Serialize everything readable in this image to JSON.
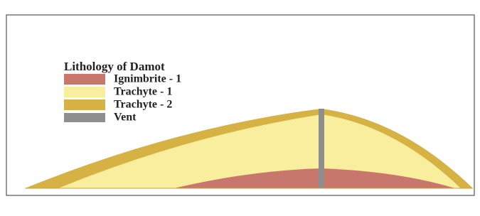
{
  "legend": {
    "title": "Lithology of Damot",
    "items": [
      {
        "label": "Ignimbrite - 1",
        "color": "#c8776c"
      },
      {
        "label": "Trachyte - 1",
        "color": "#f8ee9e"
      },
      {
        "label": "Trachyte - 2",
        "color": "#d5b243"
      },
      {
        "label": "Vent",
        "color": "#8e8e8e"
      }
    ]
  }
}
